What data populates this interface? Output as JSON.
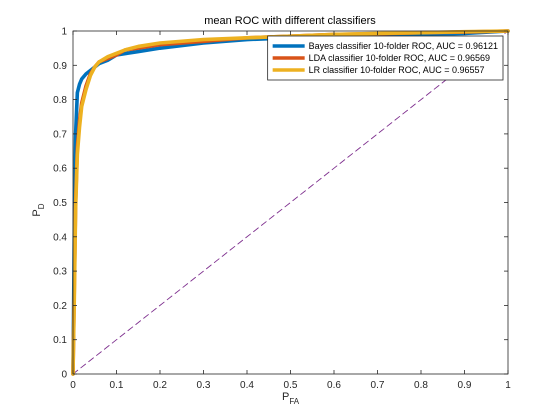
{
  "chart_data": {
    "type": "line",
    "title": "mean ROC with different classifiers",
    "xlabel": "P",
    "xlabel_sub": "FA",
    "ylabel": "P",
    "ylabel_sub": "D",
    "xlim": [
      0,
      1
    ],
    "ylim": [
      0,
      1
    ],
    "xticks": [
      0,
      0.1,
      0.2,
      0.3,
      0.4,
      0.5,
      0.6,
      0.7,
      0.8,
      0.9,
      1
    ],
    "yticks": [
      0,
      0.1,
      0.2,
      0.3,
      0.4,
      0.5,
      0.6,
      0.7,
      0.8,
      0.9,
      1
    ],
    "xtick_labels": [
      "0",
      "0.1",
      "0.2",
      "0.3",
      "0.4",
      "0.5",
      "0.6",
      "0.7",
      "0.8",
      "0.9",
      "1"
    ],
    "ytick_labels": [
      "0",
      "0.1",
      "0.2",
      "0.3",
      "0.4",
      "0.5",
      "0.6",
      "0.7",
      "0.8",
      "0.9",
      "1"
    ],
    "grid": false,
    "legend_position": "top-right",
    "series": [
      {
        "name": "Bayes classifier 10-folder ROC, AUC = 0.96121",
        "color": "#0072BD",
        "style": "solid",
        "x": [
          0,
          0.003,
          0.006,
          0.01,
          0.015,
          0.02,
          0.03,
          0.045,
          0.06,
          0.08,
          0.1,
          0.15,
          0.2,
          0.3,
          0.4,
          0.5,
          0.6,
          0.7,
          0.8,
          0.9,
          1.0
        ],
        "y": [
          0,
          0.42,
          0.7,
          0.82,
          0.845,
          0.86,
          0.875,
          0.89,
          0.905,
          0.915,
          0.93,
          0.94,
          0.95,
          0.965,
          0.975,
          0.98,
          0.985,
          0.99,
          0.99,
          0.993,
          1.0
        ]
      },
      {
        "name": "LDA classifier 10-folder ROC, AUC = 0.96569",
        "color": "#D95319",
        "style": "solid",
        "x": [
          0,
          0.003,
          0.006,
          0.01,
          0.015,
          0.02,
          0.03,
          0.04,
          0.05,
          0.06,
          0.08,
          0.1,
          0.12,
          0.15,
          0.2,
          0.3,
          0.4,
          0.5,
          0.6,
          0.7,
          0.8,
          0.9,
          1.0
        ],
        "y": [
          0,
          0.25,
          0.5,
          0.66,
          0.74,
          0.79,
          0.84,
          0.875,
          0.895,
          0.91,
          0.92,
          0.93,
          0.945,
          0.95,
          0.96,
          0.97,
          0.98,
          0.985,
          0.99,
          0.992,
          0.995,
          0.997,
          1.0
        ]
      },
      {
        "name": "LR classifier 10-folder ROC, AUC = 0.96557",
        "color": "#EDB120",
        "style": "solid",
        "x": [
          0,
          0.003,
          0.006,
          0.01,
          0.015,
          0.02,
          0.03,
          0.04,
          0.05,
          0.06,
          0.08,
          0.1,
          0.12,
          0.15,
          0.2,
          0.3,
          0.4,
          0.5,
          0.6,
          0.7,
          0.8,
          0.9,
          1.0
        ],
        "y": [
          0,
          0.22,
          0.48,
          0.64,
          0.72,
          0.78,
          0.83,
          0.87,
          0.895,
          0.91,
          0.925,
          0.935,
          0.945,
          0.955,
          0.965,
          0.975,
          0.98,
          0.985,
          0.99,
          0.993,
          0.995,
          0.998,
          1.0
        ]
      },
      {
        "name": "",
        "color": "#7E2F8E",
        "style": "dashed",
        "x": [
          0,
          1
        ],
        "y": [
          0,
          1
        ]
      }
    ]
  }
}
